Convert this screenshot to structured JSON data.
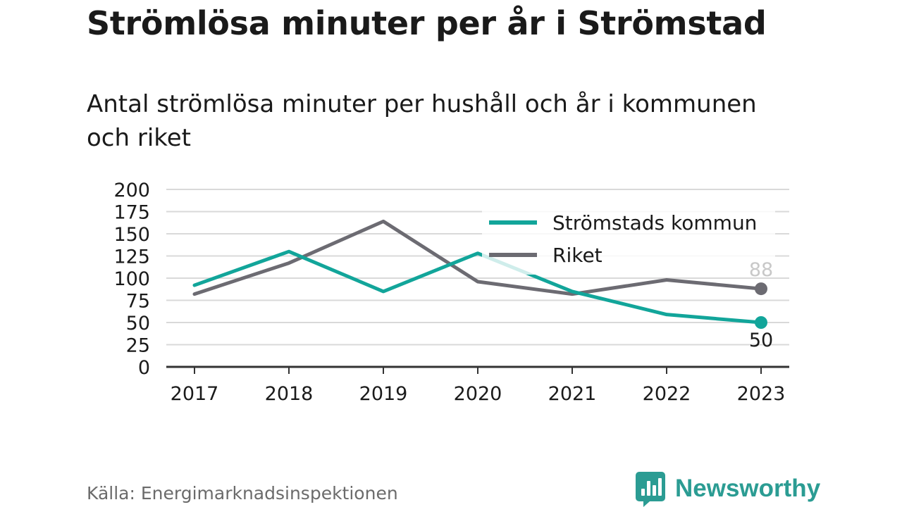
{
  "title": "Strömlösa minuter per år i Strömstad",
  "subtitle": "Antal strömlösa minuter per hushåll och år i kommunen och riket",
  "source": "Källa: Energimarknadsinspektionen",
  "brand": {
    "name": "Newsworthy",
    "logo_icon": "newsworthy-logo-icon"
  },
  "colors": {
    "kommun": "#12a59a",
    "riket": "#6c6b72",
    "grid": "#d9d9d9",
    "axis": "#333333",
    "text": "#1a1a1a"
  },
  "chart_data": {
    "type": "line",
    "title": "",
    "xlabel": "",
    "ylabel": "",
    "x": [
      "2017",
      "2018",
      "2019",
      "2020",
      "2021",
      "2022",
      "2023"
    ],
    "ylim": [
      0,
      200
    ],
    "yticks": [
      0,
      25,
      50,
      75,
      100,
      125,
      150,
      175,
      200
    ],
    "grid": true,
    "legend_position": "top-right",
    "series": [
      {
        "name": "Strömstads kommun",
        "color_key": "kommun",
        "values": [
          92,
          130,
          85,
          128,
          85,
          59,
          50
        ],
        "end_label": "50"
      },
      {
        "name": "Riket",
        "color_key": "riket",
        "values": [
          82,
          117,
          164,
          96,
          82,
          98,
          88
        ],
        "end_label": "88"
      }
    ]
  }
}
